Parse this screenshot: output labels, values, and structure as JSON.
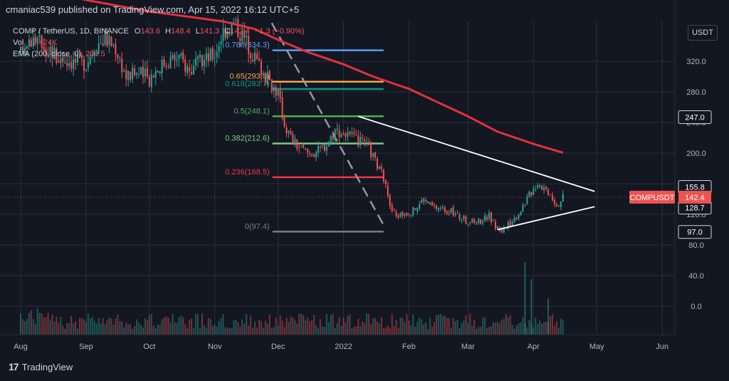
{
  "header": {
    "published": "cmaniac539 published on TradingView.com, Apr 15, 2022 16:12 UTC+5"
  },
  "legend": {
    "symbol": "COMP / TetherUS, 1D, BINANCE",
    "o_label": "O",
    "o_value": "143.6",
    "h_label": "H",
    "h_value": "148.4",
    "l_label": "L",
    "l_value": "141.3",
    "c_label": "C",
    "c_value": "142.4",
    "change": "−1.3 (−0.90%)",
    "vol_label": "Vol",
    "vol_value": "37.424K",
    "ema_label": "EMA (200, close, 0)",
    "ema_value": "200.5"
  },
  "currency_button": "USDT",
  "logo_text": "TradingView",
  "colors": {
    "background": "#131722",
    "grid": "#2a2e39",
    "up": "#26a69a",
    "down": "#ef5350",
    "ema": "#e3303f",
    "trendline": "#ffffff",
    "fib_0786": "#5b9cf6",
    "fib_065": "#f5a64a",
    "fib_0618": "#089981",
    "fib_05": "#4caf50",
    "fib_0382": "#81c784",
    "fib_0236": "#f23645",
    "fib_0": "#787b86"
  },
  "chart_data": {
    "type": "candlestick",
    "symbol": "COMP / TetherUS, 1D, BINANCE",
    "x_axis_ticks": [
      "Aug",
      "Sep",
      "Oct",
      "Nov",
      "Dec",
      "2022",
      "Feb",
      "Mar",
      "Apr",
      "May",
      "Jun"
    ],
    "y_axis_ticks": [
      "0.0",
      "40.0",
      "80.0",
      "120.0",
      "160.0",
      "200.0",
      "240.0",
      "280.0",
      "320.0"
    ],
    "ylim": [
      -30,
      365
    ],
    "last_price": {
      "label": "COMPUSDT",
      "value": 142.4
    },
    "price_labels": [
      155.8,
      247.0,
      128.7,
      97.0
    ],
    "fibonacci": [
      {
        "label": "0.786(334.3)",
        "level": 334.3
      },
      {
        "label": "0.65(293.3)",
        "level": 293.3
      },
      {
        "label": "0.618(283.7)",
        "level": 283.7
      },
      {
        "label": "0.5(248.1)",
        "level": 248.1
      },
      {
        "label": "0.382(212.6)",
        "level": 212.6
      },
      {
        "label": "0.236(168.5)",
        "level": 168.5
      },
      {
        "label": "0(97.4)",
        "level": 97.4
      }
    ],
    "fib_date_range": [
      "Dec 1",
      "Jan 20"
    ],
    "ema_200": {
      "name": "EMA (200, close, 0)",
      "points": [
        [
          "Aug 1",
          420
        ],
        [
          "Sep 1",
          400
        ],
        [
          "Oct 1",
          385
        ],
        [
          "Oct 20",
          378
        ],
        [
          "Nov 5",
          372
        ],
        [
          "Nov 20",
          362
        ],
        [
          "Dec 1",
          348
        ],
        [
          "Dec 15",
          332
        ],
        [
          "Jan 1",
          316
        ],
        [
          "Jan 15",
          300
        ],
        [
          "Feb 1",
          284
        ],
        [
          "Feb 15",
          266
        ],
        [
          "Mar 1",
          248
        ],
        [
          "Mar 15",
          228
        ],
        [
          "Apr 1",
          212
        ],
        [
          "Apr 15",
          200.5
        ]
      ]
    },
    "trendlines": [
      {
        "from": [
          "Jan 8",
          248
        ],
        "to": [
          "Apr 30",
          150
        ]
      },
      {
        "from": [
          "Mar 15",
          100
        ],
        "to": [
          "Apr 30",
          130
        ]
      }
    ],
    "dashed_line": {
      "from": [
        "Nov 28",
        370
      ],
      "to": [
        "Jan 20",
        106
      ]
    },
    "price_path": [
      [
        "Aug 1",
        330
      ],
      [
        "Aug 5",
        350
      ],
      [
        "Aug 10",
        345
      ],
      [
        "Aug 15",
        335
      ],
      [
        "Aug 20",
        325
      ],
      [
        "Aug 25",
        320
      ],
      [
        "Sep 1",
        318
      ],
      [
        "Sep 5",
        340
      ],
      [
        "Sep 10",
        350
      ],
      [
        "Sep 15",
        338
      ],
      [
        "Sep 20",
        300
      ],
      [
        "Sep 25",
        305
      ],
      [
        "Oct 1",
        298
      ],
      [
        "Oct 5",
        312
      ],
      [
        "Oct 10",
        322
      ],
      [
        "Oct 15",
        325
      ],
      [
        "Oct 20",
        308
      ],
      [
        "Oct 25",
        318
      ],
      [
        "Nov 1",
        330
      ],
      [
        "Nov 5",
        360
      ],
      [
        "Nov 10",
        370
      ],
      [
        "Nov 15",
        350
      ],
      [
        "Nov 20",
        325
      ],
      [
        "Nov 25",
        300
      ],
      [
        "Nov 28",
        290
      ],
      [
        "Dec 1",
        278
      ],
      [
        "Dec 4",
        238
      ],
      [
        "Dec 8",
        215
      ],
      [
        "Dec 12",
        205
      ],
      [
        "Dec 16",
        200
      ],
      [
        "Dec 20",
        203
      ],
      [
        "Dec 24",
        212
      ],
      [
        "Dec 28",
        230
      ],
      [
        "Jan 1",
        226
      ],
      [
        "Jan 5",
        220
      ],
      [
        "Jan 8",
        215
      ],
      [
        "Jan 12",
        210
      ],
      [
        "Jan 15",
        195
      ],
      [
        "Jan 18",
        178
      ],
      [
        "Jan 21",
        165
      ],
      [
        "Jan 23",
        128
      ],
      [
        "Jan 26",
        118
      ],
      [
        "Jan 30",
        122
      ],
      [
        "Feb 3",
        125
      ],
      [
        "Feb 8",
        140
      ],
      [
        "Feb 12",
        130
      ],
      [
        "Feb 16",
        128
      ],
      [
        "Feb 20",
        125
      ],
      [
        "Feb 24",
        118
      ],
      [
        "Feb 28",
        112
      ],
      [
        "Mar 3",
        110
      ],
      [
        "Mar 7",
        112
      ],
      [
        "Mar 11",
        118
      ],
      [
        "Mar 14",
        104
      ],
      [
        "Mar 17",
        100
      ],
      [
        "Mar 20",
        105
      ],
      [
        "Mar 24",
        118
      ],
      [
        "Mar 28",
        136
      ],
      [
        "Mar 31",
        150
      ],
      [
        "Apr 3",
        162
      ],
      [
        "Apr 6",
        155
      ],
      [
        "Apr 9",
        148
      ],
      [
        "Apr 12",
        132
      ],
      [
        "Apr 15",
        142.4
      ]
    ],
    "volume_spikes": [
      [
        "Mar 28",
        68
      ],
      [
        "Mar 31",
        52
      ],
      [
        "Apr 8",
        34
      ]
    ]
  }
}
